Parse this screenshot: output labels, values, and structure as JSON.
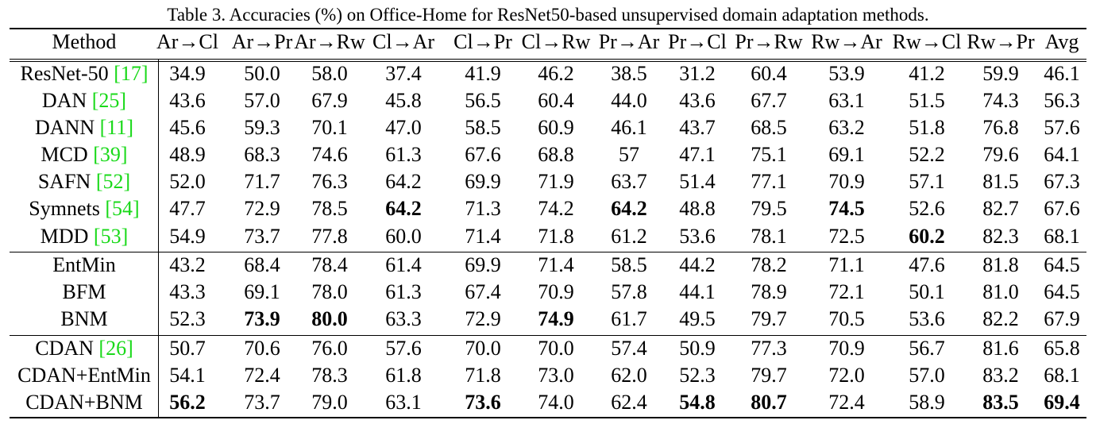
{
  "caption": "Table 3. Accuracies (%) on Office-Home for ResNet50-based unsupervised domain adaptation methods.",
  "headers": [
    "Method",
    "Ar→Cl",
    "Ar→Pr",
    "Ar→Rw",
    "Cl→Ar",
    "Cl→Pr",
    "Cl→Rw",
    "Pr→Ar",
    "Pr→Cl",
    "Pr→Rw",
    "Rw→Ar",
    "Rw→Cl",
    "Rw→Pr",
    "Avg"
  ],
  "groups": [
    [
      {
        "name": "ResNet-50 ",
        "ref": "[17]",
        "values": [
          "34.9",
          "50.0",
          "58.0",
          "37.4",
          "41.9",
          "46.2",
          "38.5",
          "31.2",
          "60.4",
          "53.9",
          "41.2",
          "59.9",
          "46.1"
        ],
        "bold": []
      },
      {
        "name": "DAN ",
        "ref": "[25]",
        "values": [
          "43.6",
          "57.0",
          "67.9",
          "45.8",
          "56.5",
          "60.4",
          "44.0",
          "43.6",
          "67.7",
          "63.1",
          "51.5",
          "74.3",
          "56.3"
        ],
        "bold": []
      },
      {
        "name": "DANN ",
        "ref": "[11]",
        "values": [
          "45.6",
          "59.3",
          "70.1",
          "47.0",
          "58.5",
          "60.9",
          "46.1",
          "43.7",
          "68.5",
          "63.2",
          "51.8",
          "76.8",
          "57.6"
        ],
        "bold": []
      },
      {
        "name": "MCD ",
        "ref": "[39]",
        "values": [
          "48.9",
          "68.3",
          "74.6",
          "61.3",
          "67.6",
          "68.8",
          "57",
          "47.1",
          "75.1",
          "69.1",
          "52.2",
          "79.6",
          "64.1"
        ],
        "bold": []
      },
      {
        "name": "SAFN ",
        "ref": "[52]",
        "values": [
          "52.0",
          "71.7",
          "76.3",
          "64.2",
          "69.9",
          "71.9",
          "63.7",
          "51.4",
          "77.1",
          "70.9",
          "57.1",
          "81.5",
          "67.3"
        ],
        "bold": []
      },
      {
        "name": "Symnets ",
        "ref": "[54]",
        "values": [
          "47.7",
          "72.9",
          "78.5",
          "64.2",
          "71.3",
          "74.2",
          "64.2",
          "48.8",
          "79.5",
          "74.5",
          "52.6",
          "82.7",
          "67.6"
        ],
        "bold": [
          3,
          6,
          9
        ]
      },
      {
        "name": "MDD ",
        "ref": "[53]",
        "values": [
          "54.9",
          "73.7",
          "77.8",
          "60.0",
          "71.4",
          "71.8",
          "61.2",
          "53.6",
          "78.1",
          "72.5",
          "60.2",
          "82.3",
          "68.1"
        ],
        "bold": [
          10
        ]
      }
    ],
    [
      {
        "name": "EntMin",
        "ref": "",
        "values": [
          "43.2",
          "68.4",
          "78.4",
          "61.4",
          "69.9",
          "71.4",
          "58.5",
          "44.2",
          "78.2",
          "71.1",
          "47.6",
          "81.8",
          "64.5"
        ],
        "bold": []
      },
      {
        "name": "BFM",
        "ref": "",
        "values": [
          "43.3",
          "69.1",
          "78.0",
          "61.3",
          "67.4",
          "70.9",
          "57.8",
          "44.1",
          "78.9",
          "72.1",
          "50.1",
          "81.0",
          "64.5"
        ],
        "bold": []
      },
      {
        "name": "BNM",
        "ref": "",
        "values": [
          "52.3",
          "73.9",
          "80.0",
          "63.3",
          "72.9",
          "74.9",
          "61.7",
          "49.5",
          "79.7",
          "70.5",
          "53.6",
          "82.2",
          "67.9"
        ],
        "bold": [
          1,
          2,
          5
        ]
      }
    ],
    [
      {
        "name": "CDAN ",
        "ref": "[26]",
        "values": [
          "50.7",
          "70.6",
          "76.0",
          "57.6",
          "70.0",
          "70.0",
          "57.4",
          "50.9",
          "77.3",
          "70.9",
          "56.7",
          "81.6",
          "65.8"
        ],
        "bold": []
      },
      {
        "name": "CDAN+EntMin",
        "ref": "",
        "values": [
          "54.1",
          "72.4",
          "78.3",
          "61.8",
          "71.8",
          "73.0",
          "62.0",
          "52.3",
          "79.7",
          "72.0",
          "57.0",
          "83.2",
          "68.1"
        ],
        "bold": []
      },
      {
        "name": "CDAN+BNM",
        "ref": "",
        "values": [
          "56.2",
          "73.7",
          "79.0",
          "63.1",
          "73.6",
          "74.0",
          "62.4",
          "54.8",
          "80.7",
          "72.4",
          "58.9",
          "83.5",
          "69.4"
        ],
        "bold": [
          0,
          4,
          7,
          8,
          11,
          12
        ]
      }
    ]
  ]
}
